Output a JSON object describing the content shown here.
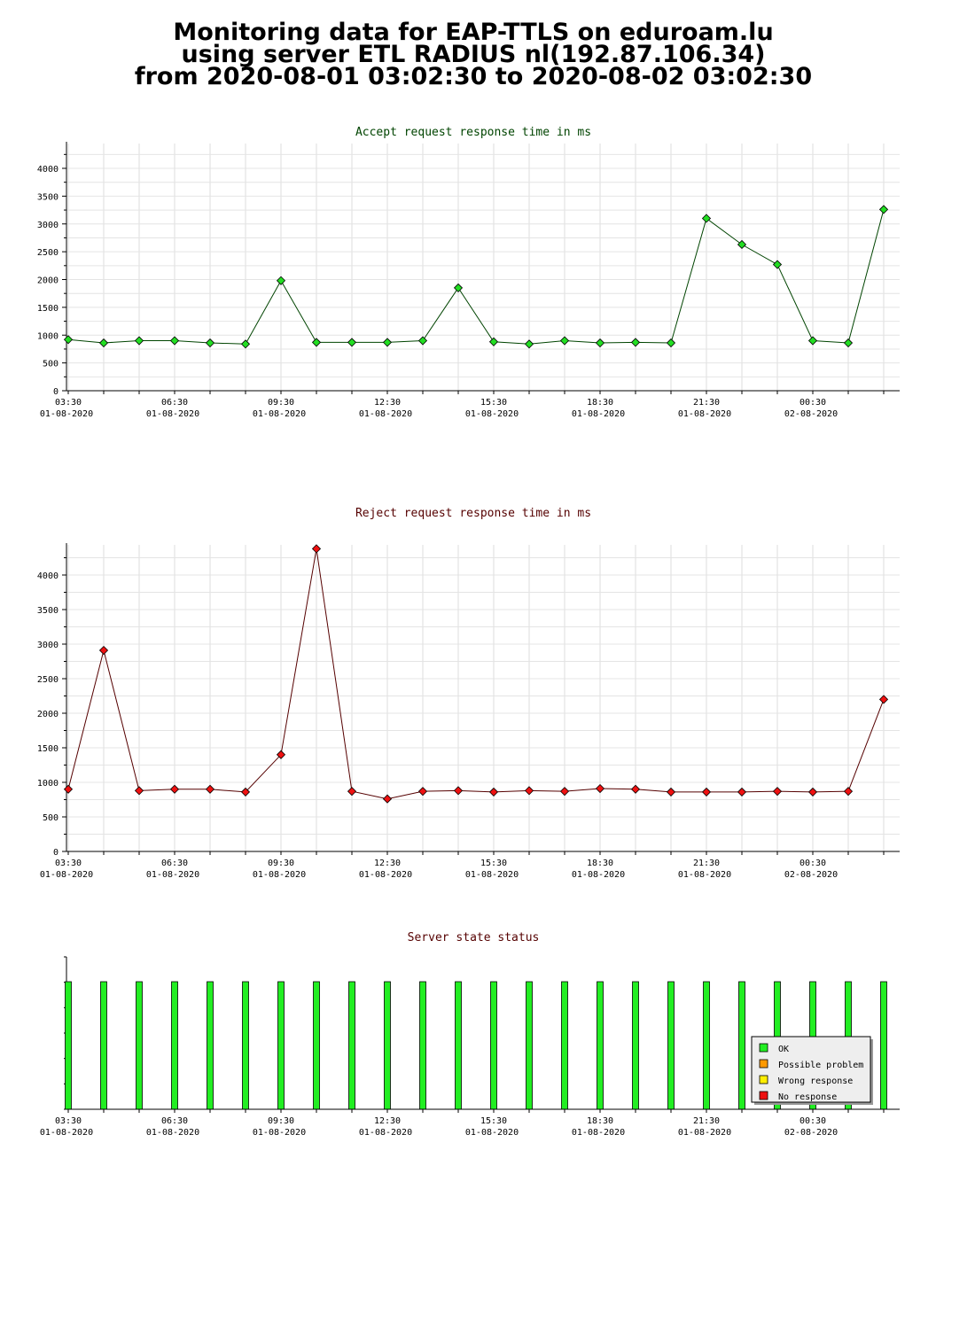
{
  "page_title": {
    "lines": [
      "Monitoring data for EAP-TTLS on eduroam.lu",
      "using server ETL RADIUS nl(192.87.106.34)",
      "from 2020-08-01 03:02:30 to 2020-08-02 03:02:30"
    ]
  },
  "x_axis": {
    "tick_labels": [
      {
        "time": "03:30",
        "date": "01-08-2020"
      },
      {
        "time": "06:30",
        "date": "01-08-2020"
      },
      {
        "time": "09:30",
        "date": "01-08-2020"
      },
      {
        "time": "12:30",
        "date": "01-08-2020"
      },
      {
        "time": "15:30",
        "date": "01-08-2020"
      },
      {
        "time": "18:30",
        "date": "01-08-2020"
      },
      {
        "time": "21:30",
        "date": "01-08-2020"
      },
      {
        "time": "00:30",
        "date": "02-08-2020"
      }
    ]
  },
  "chart_data": [
    {
      "type": "line",
      "title": "Accept request response time in ms",
      "title_color": "#004400",
      "line_color": "#004400",
      "marker_color": "#22dd22",
      "x": [
        "03:30",
        "04:30",
        "05:30",
        "06:30",
        "07:30",
        "08:30",
        "09:30",
        "10:30",
        "11:30",
        "12:30",
        "13:30",
        "14:30",
        "15:30",
        "16:30",
        "17:30",
        "18:30",
        "19:30",
        "20:30",
        "21:30",
        "22:30",
        "23:30",
        "00:30",
        "01:30",
        "02:30"
      ],
      "y": [
        920,
        860,
        900,
        900,
        860,
        840,
        1980,
        870,
        870,
        870,
        900,
        1850,
        880,
        840,
        900,
        860,
        870,
        860,
        3100,
        2630,
        2270,
        900,
        860,
        3260
      ],
      "y_ticks": [
        0,
        500,
        1000,
        1500,
        2000,
        2500,
        3000,
        3500,
        4000
      ],
      "ylim": [
        0,
        4400
      ],
      "grid": true
    },
    {
      "type": "line",
      "title": "Reject request response time in ms",
      "title_color": "#550000",
      "line_color": "#550000",
      "marker_color": "#ee1111",
      "x": [
        "03:30",
        "04:30",
        "05:30",
        "06:30",
        "07:30",
        "08:30",
        "09:30",
        "10:30",
        "11:30",
        "12:30",
        "13:30",
        "14:30",
        "15:30",
        "16:30",
        "17:30",
        "18:30",
        "19:30",
        "20:30",
        "21:30",
        "22:30",
        "23:30",
        "00:30",
        "01:30",
        "02:30"
      ],
      "y": [
        900,
        2910,
        880,
        900,
        900,
        860,
        1400,
        4380,
        870,
        760,
        870,
        880,
        860,
        880,
        870,
        910,
        900,
        860,
        860,
        860,
        870,
        860,
        870,
        2200
      ],
      "y_ticks": [
        0,
        500,
        1000,
        1500,
        2000,
        2500,
        3000,
        3500,
        4000
      ],
      "ylim": [
        0,
        4400
      ],
      "grid": true
    },
    {
      "type": "bar",
      "title": "Server state status",
      "title_color": "#550000",
      "categories": [
        "03:30",
        "04:30",
        "05:30",
        "06:30",
        "07:30",
        "08:30",
        "09:30",
        "10:30",
        "11:30",
        "12:30",
        "13:30",
        "14:30",
        "15:30",
        "16:30",
        "17:30",
        "18:30",
        "19:30",
        "20:30",
        "21:30",
        "22:30",
        "23:30",
        "00:30",
        "01:30",
        "02:30"
      ],
      "states": [
        "OK",
        "OK",
        "OK",
        "OK",
        "OK",
        "OK",
        "OK",
        "OK",
        "OK",
        "OK",
        "OK",
        "OK",
        "OK",
        "OK",
        "OK",
        "OK",
        "OK",
        "OK",
        "OK",
        "OK",
        "OK",
        "OK",
        "OK",
        "OK"
      ],
      "legend": [
        {
          "label": "OK",
          "color": "#22ee22"
        },
        {
          "label": "Possible problem",
          "color": "#ff9900"
        },
        {
          "label": "Wrong response",
          "color": "#ffee00"
        },
        {
          "label": "No response",
          "color": "#ee1111"
        }
      ],
      "legend_position": "bottom-right"
    }
  ]
}
